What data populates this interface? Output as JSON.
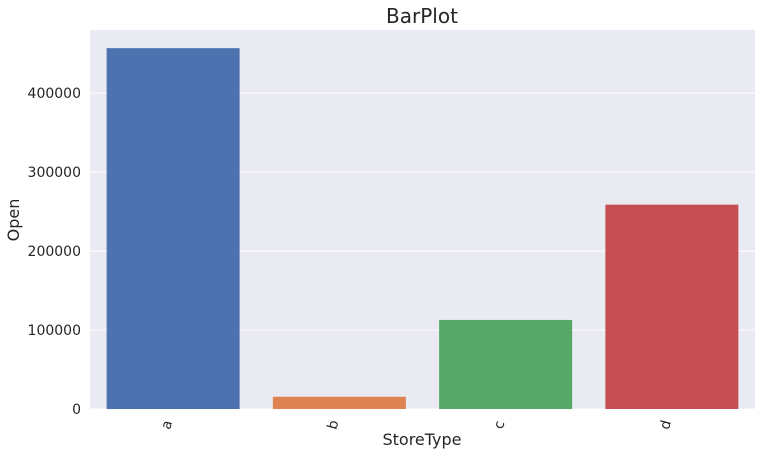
{
  "chart_data": {
    "type": "bar",
    "title": "BarPlot",
    "xlabel": "StoreType",
    "ylabel": "Open",
    "categories": [
      "a",
      "b",
      "c",
      "d"
    ],
    "values": [
      457000,
      15500,
      112800,
      258800
    ],
    "colors": [
      "#4c72b0",
      "#dd8452",
      "#55a868",
      "#c44e52"
    ],
    "ylim": [
      0,
      480000
    ],
    "yticks": [
      0,
      100000,
      200000,
      300000,
      400000
    ],
    "ytick_labels": [
      "0",
      "100000",
      "200000",
      "300000",
      "400000"
    ],
    "grid": true,
    "background": "#eaeaf2"
  }
}
